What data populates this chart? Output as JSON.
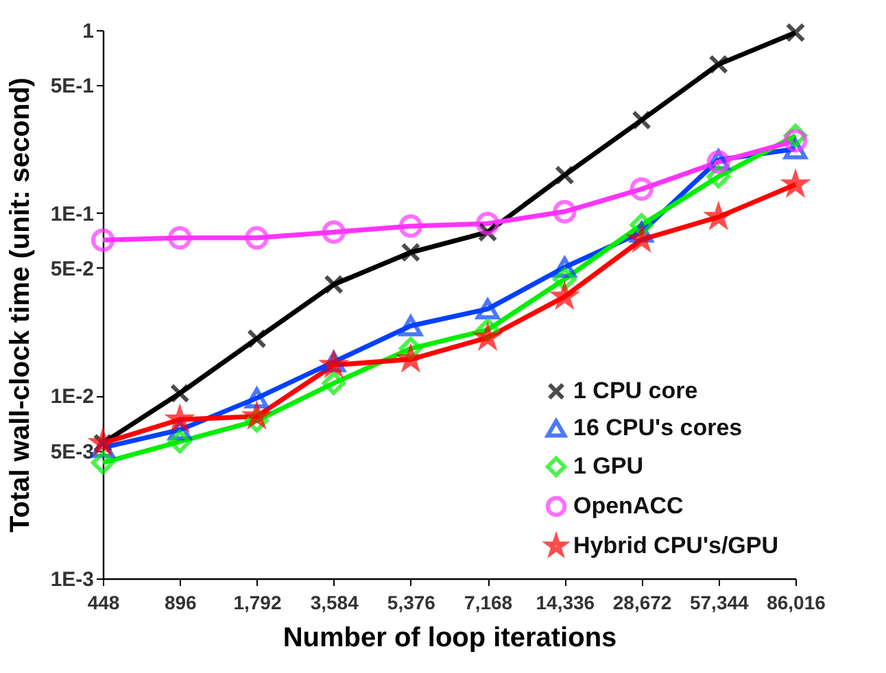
{
  "chart_data": {
    "type": "line",
    "xlabel": "Number of loop iterations",
    "ylabel": "Total wall-clock time (unit: second)",
    "categories": [
      "448",
      "896",
      "1,792",
      "3,584",
      "5,376",
      "7,168",
      "14,336",
      "28,672",
      "57,344",
      "86,016"
    ],
    "series": [
      {
        "name": "1 CPU core",
        "color": "#000000",
        "marker": "cross",
        "values": [
          0.0055,
          0.0103,
          0.0205,
          0.0406,
          0.0608,
          0.0785,
          0.161,
          0.322,
          0.65,
          0.97
        ]
      },
      {
        "name": "16 CPU's cores",
        "color": "#0040ff",
        "marker": "triangle",
        "values": [
          0.0052,
          0.0065,
          0.0097,
          0.0153,
          0.0241,
          0.0298,
          0.0504,
          0.0785,
          0.195,
          0.224
        ]
      },
      {
        "name": "1 GPU",
        "color": "#00ee00",
        "marker": "diamond",
        "values": [
          0.0043,
          0.0056,
          0.0073,
          0.0117,
          0.0181,
          0.0229,
          0.0434,
          0.086,
          0.158,
          0.265
        ]
      },
      {
        "name": "OpenACC",
        "color": "#ff33ff",
        "marker": "circle",
        "values": [
          0.071,
          0.073,
          0.073,
          0.0785,
          0.0847,
          0.0875,
          0.1016,
          0.135,
          0.19,
          0.248
        ]
      },
      {
        "name": "Hybrid CPU's/GPU",
        "color": "#ff0000",
        "marker": "star",
        "values": [
          0.0055,
          0.0074,
          0.0077,
          0.0147,
          0.0158,
          0.0208,
          0.0348,
          0.0714,
          0.095,
          0.143
        ]
      }
    ],
    "log": true,
    "ylim": [
      0.001,
      1
    ],
    "yticks": [
      {
        "value": 0.001,
        "label": "1E-3"
      },
      {
        "value": 0.005,
        "label": "5E-3"
      },
      {
        "value": 0.01,
        "label": "1E-2"
      },
      {
        "value": 0.05,
        "label": "5E-2"
      },
      {
        "value": 0.1,
        "label": "1E-1"
      },
      {
        "value": 0.5,
        "label": "5E-1"
      },
      {
        "value": 1,
        "label": "1"
      }
    ],
    "legend": "bottom right",
    "grid": false,
    "line_style": "solid"
  }
}
